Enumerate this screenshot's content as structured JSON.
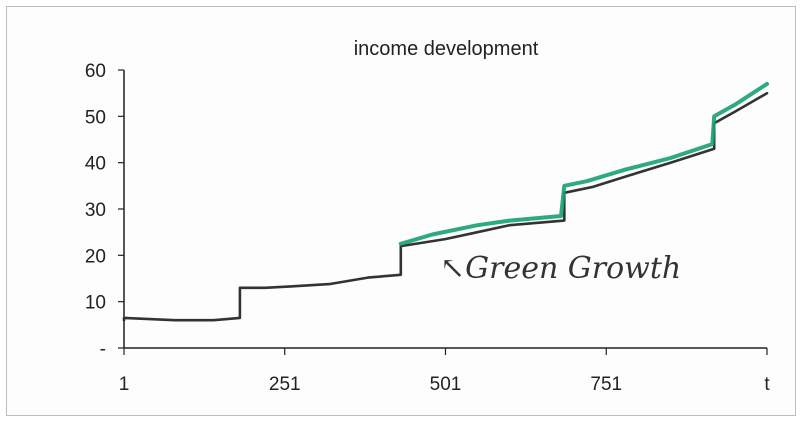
{
  "chart_data": {
    "type": "line",
    "title": "income development",
    "xlabel": "t",
    "ylabel": "",
    "xlim": [
      1,
      1000
    ],
    "ylim": [
      0,
      60
    ],
    "grid": false,
    "x_ticks": [
      "1",
      "251",
      "501",
      "751",
      "t"
    ],
    "y_ticks": [
      "-",
      "10",
      "20",
      "30",
      "40",
      "50",
      "60"
    ],
    "colors": {
      "baseline": "#333333",
      "green": "#17a26f"
    },
    "series": [
      {
        "style": "dark",
        "points": [
          [
            1,
            6
          ],
          [
            1,
            6.5
          ],
          [
            80,
            6
          ],
          [
            140,
            6
          ],
          [
            181,
            6.5
          ],
          [
            181,
            13
          ],
          [
            220,
            13
          ],
          [
            260,
            13.3
          ],
          [
            320,
            13.8
          ],
          [
            380,
            15.2
          ],
          [
            431,
            15.8
          ],
          [
            431,
            22
          ],
          [
            500,
            23.5
          ],
          [
            550,
            25
          ],
          [
            600,
            26.5
          ],
          [
            685,
            27.5
          ],
          [
            685,
            33.5
          ],
          [
            730,
            34.8
          ],
          [
            780,
            37
          ],
          [
            850,
            40
          ],
          [
            918,
            43
          ],
          [
            918,
            48.5
          ],
          [
            950,
            51
          ],
          [
            1000,
            55
          ]
        ]
      },
      {
        "style": "green",
        "points": [
          [
            431,
            22.5
          ],
          [
            480,
            24.5
          ],
          [
            550,
            26.5
          ],
          [
            600,
            27.5
          ],
          [
            680,
            28.5
          ],
          [
            685,
            35
          ],
          [
            720,
            36
          ],
          [
            780,
            38.5
          ],
          [
            850,
            41
          ],
          [
            915,
            44
          ],
          [
            918,
            50
          ],
          [
            950,
            52.5
          ],
          [
            1000,
            57
          ]
        ]
      }
    ],
    "annotations": [
      {
        "text": "↖Green Growth"
      }
    ]
  }
}
